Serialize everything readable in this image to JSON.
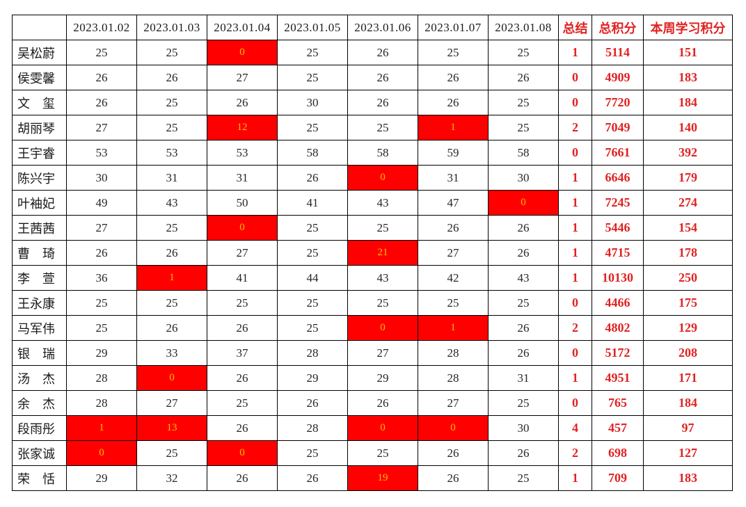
{
  "table": {
    "accent_red_text": "#e02222",
    "highlight_bg": "#fe0000",
    "highlight_text": "#ffc000",
    "headers": {
      "corner": "",
      "dates": [
        "2023.01.02",
        "2023.01.03",
        "2023.01.04",
        "2023.01.05",
        "2023.01.06",
        "2023.01.07",
        "2023.01.08"
      ],
      "summary": "总结",
      "total": "总积分",
      "week": "本周学习积分"
    },
    "rows": [
      {
        "name": "吴松蔚",
        "days": [
          "25",
          "25",
          "0",
          "25",
          "26",
          "25",
          "25"
        ],
        "red": [
          2
        ],
        "summary": "1",
        "total": "5114",
        "week": "151"
      },
      {
        "name": "侯雯馨",
        "days": [
          "26",
          "26",
          "27",
          "25",
          "26",
          "26",
          "26"
        ],
        "red": [],
        "summary": "0",
        "total": "4909",
        "week": "183"
      },
      {
        "name": "文　玺",
        "days": [
          "26",
          "25",
          "26",
          "30",
          "26",
          "26",
          "25"
        ],
        "red": [],
        "summary": "0",
        "total": "7720",
        "week": "184"
      },
      {
        "name": "胡丽琴",
        "days": [
          "27",
          "25",
          "12",
          "25",
          "25",
          "1",
          "25"
        ],
        "red": [
          2,
          5
        ],
        "summary": "2",
        "total": "7049",
        "week": "140"
      },
      {
        "name": "王宇睿",
        "days": [
          "53",
          "53",
          "53",
          "58",
          "58",
          "59",
          "58"
        ],
        "red": [],
        "summary": "0",
        "total": "7661",
        "week": "392"
      },
      {
        "name": "陈兴宇",
        "days": [
          "30",
          "31",
          "31",
          "26",
          "0",
          "31",
          "30"
        ],
        "red": [
          4
        ],
        "summary": "1",
        "total": "6646",
        "week": "179"
      },
      {
        "name": "叶袖妃",
        "days": [
          "49",
          "43",
          "50",
          "41",
          "43",
          "47",
          "0"
        ],
        "red": [
          6
        ],
        "summary": "1",
        "total": "7245",
        "week": "274"
      },
      {
        "name": "王茜茜",
        "days": [
          "27",
          "25",
          "0",
          "25",
          "25",
          "26",
          "26"
        ],
        "red": [
          2
        ],
        "summary": "1",
        "total": "5446",
        "week": "154"
      },
      {
        "name": "曹　琦",
        "days": [
          "26",
          "26",
          "27",
          "25",
          "21",
          "27",
          "26"
        ],
        "red": [
          4
        ],
        "summary": "1",
        "total": "4715",
        "week": "178"
      },
      {
        "name": "李　萱",
        "days": [
          "36",
          "1",
          "41",
          "44",
          "43",
          "42",
          "43"
        ],
        "red": [
          1
        ],
        "summary": "1",
        "total": "10130",
        "week": "250"
      },
      {
        "name": "王永康",
        "days": [
          "25",
          "25",
          "25",
          "25",
          "25",
          "25",
          "25"
        ],
        "red": [],
        "summary": "0",
        "total": "4466",
        "week": "175"
      },
      {
        "name": "马军伟",
        "days": [
          "25",
          "26",
          "26",
          "25",
          "0",
          "1",
          "26"
        ],
        "red": [
          4,
          5
        ],
        "summary": "2",
        "total": "4802",
        "week": "129"
      },
      {
        "name": "银　瑞",
        "days": [
          "29",
          "33",
          "37",
          "28",
          "27",
          "28",
          "26"
        ],
        "red": [],
        "summary": "0",
        "total": "5172",
        "week": "208"
      },
      {
        "name": "汤　杰",
        "days": [
          "28",
          "0",
          "26",
          "29",
          "29",
          "28",
          "31"
        ],
        "red": [
          1
        ],
        "summary": "1",
        "total": "4951",
        "week": "171"
      },
      {
        "name": "余　杰",
        "days": [
          "28",
          "27",
          "25",
          "26",
          "26",
          "27",
          "25"
        ],
        "red": [],
        "summary": "0",
        "total": "765",
        "week": "184"
      },
      {
        "name": "段雨彤",
        "days": [
          "1",
          "13",
          "26",
          "28",
          "0",
          "0",
          "30"
        ],
        "red": [
          0,
          1,
          4,
          5
        ],
        "summary": "4",
        "total": "457",
        "week": "97"
      },
      {
        "name": "张家诚",
        "days": [
          "0",
          "25",
          "0",
          "25",
          "25",
          "26",
          "26"
        ],
        "red": [
          0,
          2
        ],
        "summary": "2",
        "total": "698",
        "week": "127"
      },
      {
        "name": "荣　恬",
        "days": [
          "29",
          "32",
          "26",
          "26",
          "19",
          "26",
          "25"
        ],
        "red": [
          4
        ],
        "summary": "1",
        "total": "709",
        "week": "183"
      }
    ]
  }
}
